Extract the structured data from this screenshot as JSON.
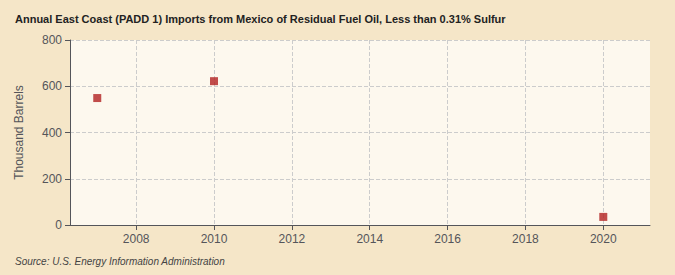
{
  "chart_data": {
    "type": "scatter",
    "title": "Annual East Coast (PADD 1) Imports from Mexico of Residual Fuel Oil, Less than 0.31% Sulfur",
    "ylabel": "Thousand Barrels",
    "source": "Source: U.S. Energy Information Administration",
    "x": [
      2007,
      2010,
      2020
    ],
    "values": [
      549,
      622,
      35
    ],
    "color": "#b22020",
    "marker": "square",
    "xlim": [
      2006.3,
      2021.2
    ],
    "xticks": [
      2008,
      2010,
      2012,
      2014,
      2016,
      2018,
      2020
    ],
    "ylim": [
      0,
      800
    ],
    "yticks": [
      0,
      200,
      400,
      600,
      800
    ],
    "grid": true
  }
}
